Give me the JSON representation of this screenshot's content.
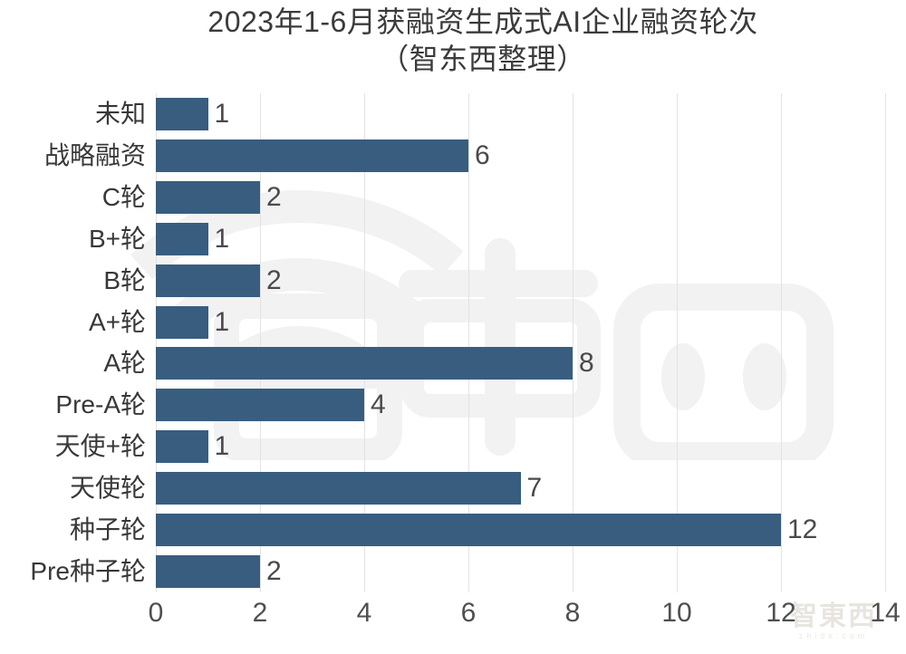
{
  "title": {
    "line1": "2023年1-6月获融资生成式AI企业融资轮次",
    "line2": "（智东西整理）"
  },
  "chart_data": {
    "type": "bar",
    "orientation": "horizontal",
    "title": "2023年1-6月获融资生成式AI企业融资轮次（智东西整理）",
    "categories": [
      "未知",
      "战略融资",
      "C轮",
      "B+轮",
      "B轮",
      "A+轮",
      "A轮",
      "Pre-A轮",
      "天使+轮",
      "天使轮",
      "种子轮",
      "Pre种子轮"
    ],
    "values": [
      1,
      6,
      2,
      1,
      2,
      1,
      8,
      4,
      1,
      7,
      12,
      2
    ],
    "xlabel": "",
    "ylabel": "",
    "xlim": [
      0,
      14
    ],
    "x_ticks": [
      "0",
      "2",
      "4",
      "6",
      "8",
      "10",
      "12",
      "14"
    ],
    "grid": true,
    "legend": false,
    "bar_color": "#395d7f",
    "gridline_color": "#e3e3e3"
  },
  "watermark": {
    "center_brand": "智東西",
    "corner_brand": "智東西",
    "corner_domain": "zhidx.com"
  }
}
